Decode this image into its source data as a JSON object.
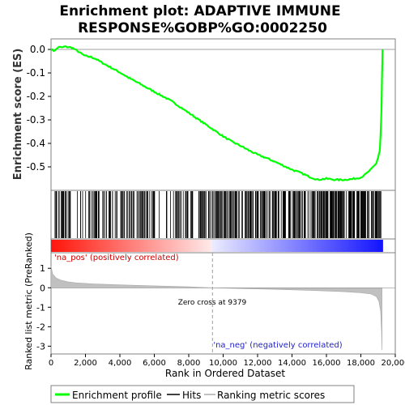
{
  "chart_data": {
    "type": "line",
    "title_lines": [
      "Enrichment plot: ADAPTIVE IMMUNE",
      "RESPONSE%GOBP%GO:0002250"
    ],
    "xlabel": "Rank in Ordered Dataset",
    "xlim": [
      0,
      20000
    ],
    "x_ticks": [
      0,
      2000,
      4000,
      6000,
      8000,
      10000,
      12000,
      14000,
      16000,
      18000,
      20000
    ],
    "x_tick_labels": [
      "0",
      "2,000",
      "4,000",
      "6,000",
      "8,000",
      "10,000",
      "12,000",
      "14,000",
      "16,000",
      "18,000",
      "20,000"
    ],
    "es_panel": {
      "ylabel": "Enrichment score (ES)",
      "ylim": [
        -0.6,
        0.045
      ],
      "y_ticks": [
        0.0,
        -0.1,
        -0.2,
        -0.3,
        -0.4,
        -0.5
      ],
      "y_tick_labels": [
        "0.0",
        "-0.1",
        "-0.2",
        "-0.3",
        "-0.4",
        "-0.5"
      ],
      "series_name": "Enrichment profile",
      "color": "#00ff00",
      "x": [
        0,
        150,
        300,
        450,
        600,
        800,
        1000,
        1200,
        1500,
        1800,
        2000,
        2300,
        2600,
        3000,
        3500,
        4000,
        4500,
        5000,
        5500,
        6000,
        6500,
        7000,
        7500,
        8000,
        8500,
        9000,
        9500,
        10000,
        10500,
        11000,
        11500,
        12000,
        12500,
        13000,
        13500,
        14000,
        14500,
        15000,
        15500,
        16000,
        16500,
        17000,
        17500,
        18000,
        18300,
        18600,
        18900,
        19000,
        19100,
        19150,
        19200,
        19230,
        19260
      ],
      "y": [
        0.0,
        -0.005,
        0.0,
        0.012,
        0.008,
        0.012,
        0.01,
        0.008,
        -0.005,
        -0.02,
        -0.028,
        -0.032,
        -0.04,
        -0.058,
        -0.078,
        -0.098,
        -0.12,
        -0.14,
        -0.16,
        -0.18,
        -0.2,
        -0.22,
        -0.245,
        -0.27,
        -0.295,
        -0.32,
        -0.345,
        -0.37,
        -0.392,
        -0.41,
        -0.43,
        -0.448,
        -0.462,
        -0.478,
        -0.495,
        -0.512,
        -0.525,
        -0.542,
        -0.555,
        -0.55,
        -0.555,
        -0.555,
        -0.552,
        -0.545,
        -0.53,
        -0.51,
        -0.485,
        -0.46,
        -0.43,
        -0.36,
        -0.25,
        -0.12,
        0.0
      ]
    },
    "hits_panel": {
      "series_name": "Hits",
      "color": "#000000",
      "count": 420
    },
    "metric_panel": {
      "ylabel": "Ranked list metric (PreRanked)",
      "ylim": [
        -3.4,
        1.8
      ],
      "y_ticks": [
        1,
        0,
        -1,
        -2,
        -3
      ],
      "y_tick_labels": [
        "1",
        "0",
        "-1",
        "-2",
        "-3"
      ],
      "series_name": "Ranking metric scores",
      "color": "#c0c0c0",
      "x": [
        0,
        100,
        300,
        600,
        1000,
        1500,
        2500,
        4000,
        6000,
        8000,
        9379,
        11000,
        13000,
        15000,
        17000,
        18000,
        18600,
        18900,
        19050,
        19150,
        19200,
        19230
      ],
      "y": [
        1.1,
        0.7,
        0.5,
        0.38,
        0.3,
        0.25,
        0.2,
        0.15,
        0.1,
        0.05,
        0.0,
        -0.04,
        -0.08,
        -0.13,
        -0.2,
        -0.26,
        -0.32,
        -0.45,
        -0.7,
        -1.2,
        -2.2,
        -3.2
      ],
      "zero_cross_label": "Zero cross at 9379",
      "zero_cross_x": 9379,
      "pos_label": "'na_pos' (positively correlated)",
      "neg_label": "'na_neg' (negatively correlated)"
    },
    "legend": {
      "placement": "bottom",
      "entries": [
        "Enrichment profile",
        "Hits",
        "Ranking metric scores"
      ]
    }
  }
}
